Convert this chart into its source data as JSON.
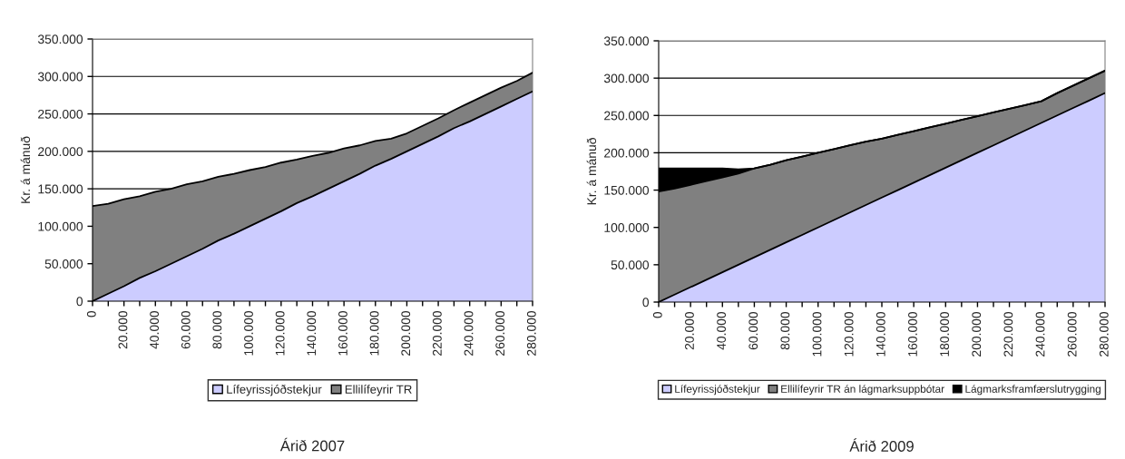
{
  "chart_data": [
    {
      "type": "area",
      "title": "Árið 2007",
      "ylabel": "Kr. á mánuð",
      "stacked": true,
      "grid": "y",
      "legend": "bottom",
      "categories": [
        "0",
        null,
        "20.000",
        null,
        "40.000",
        null,
        "60.000",
        null,
        "80.000",
        null,
        "100.000",
        null,
        "120.000",
        null,
        "140.000",
        null,
        "160.000",
        null,
        "180.000",
        null,
        "200.000",
        null,
        "220.000",
        null,
        "240.000",
        null,
        "260.000",
        null,
        "280.000"
      ],
      "ylim": [
        0,
        350000
      ],
      "yticks": [
        0,
        {
          "value": 50000,
          "label": "50.000"
        },
        {
          "value": 100000,
          "label": "100.000"
        },
        {
          "value": 150000,
          "label": "150.000"
        },
        {
          "value": 200000,
          "label": "200.000"
        },
        {
          "value": 250000,
          "label": "250.000"
        },
        {
          "value": 300000,
          "label": "300.000"
        },
        {
          "value": 350000,
          "label": "350.000"
        }
      ],
      "series": [
        {
          "name": "Lífeyrissjóðstekjur",
          "color": "#ccccff",
          "values": [
            0,
            10000,
            20000,
            31000,
            40000,
            50000,
            60000,
            70000,
            81000,
            90000,
            100000,
            110000,
            120000,
            131000,
            140000,
            150000,
            160000,
            170000,
            181000,
            190000,
            200000,
            210000,
            220000,
            231000,
            240000,
            250000,
            260000,
            270000,
            280000
          ]
        },
        {
          "name": "Ellilífeyrir TR",
          "color": "#808080",
          "values": [
            127000,
            120000,
            116000,
            109000,
            106000,
            100000,
            96000,
            90000,
            85000,
            80000,
            75000,
            69000,
            65000,
            58000,
            54000,
            48000,
            44000,
            38000,
            33000,
            27000,
            24000,
            24000,
            24000,
            24000,
            25000,
            25000,
            25000,
            24000,
            25000
          ]
        }
      ]
    },
    {
      "type": "area",
      "title": "Árið 2009",
      "ylabel": "Kr. á mánuð",
      "stacked": true,
      "grid": "y",
      "legend": "bottom",
      "categories": [
        "0",
        null,
        "20.000",
        null,
        "40.000",
        null,
        "60.000",
        null,
        "80.000",
        null,
        "100.000",
        null,
        "120.000",
        null,
        "140.000",
        null,
        "160.000",
        null,
        "180.000",
        null,
        "200.000",
        null,
        "220.000",
        null,
        "240.000",
        null,
        "260.000",
        null,
        "280.000"
      ],
      "ylim": [
        0,
        350000
      ],
      "yticks": [
        0,
        {
          "value": 50000,
          "label": "50.000"
        },
        {
          "value": 100000,
          "label": "100.000"
        },
        {
          "value": 150000,
          "label": "150.000"
        },
        {
          "value": 200000,
          "label": "200.000"
        },
        {
          "value": 250000,
          "label": "250.000"
        },
        {
          "value": 300000,
          "label": "300.000"
        },
        {
          "value": 350000,
          "label": "350.000"
        }
      ],
      "series": [
        {
          "name": "Lífeyrissjóðstekjur",
          "color": "#ccccff",
          "values": [
            0,
            10000,
            20000,
            30000,
            40000,
            50000,
            60000,
            70000,
            80000,
            90000,
            100000,
            110000,
            120000,
            130000,
            140000,
            150000,
            160000,
            170000,
            180000,
            190000,
            200000,
            210000,
            220000,
            230000,
            240000,
            250000,
            260000,
            270000,
            280000
          ]
        },
        {
          "name": "Ellilífeyrir TR án lágmarksuppbótar",
          "color": "#808080",
          "values": [
            148000,
            142000,
            137000,
            132000,
            127000,
            122000,
            119000,
            114000,
            110000,
            105000,
            100000,
            95000,
            90000,
            85000,
            79000,
            74000,
            69000,
            64000,
            59000,
            54000,
            49000,
            44000,
            39000,
            34000,
            29000,
            30000,
            30000,
            30000,
            30000
          ]
        },
        {
          "name": "Lágmarksframfærslutrygging",
          "color": "#000000",
          "values": [
            31000,
            27000,
            22000,
            17000,
            12000,
            6000,
            0,
            0,
            0,
            0,
            0,
            0,
            0,
            0,
            0,
            0,
            0,
            0,
            0,
            0,
            0,
            0,
            0,
            0,
            0,
            0,
            0,
            0,
            0
          ]
        }
      ]
    }
  ]
}
